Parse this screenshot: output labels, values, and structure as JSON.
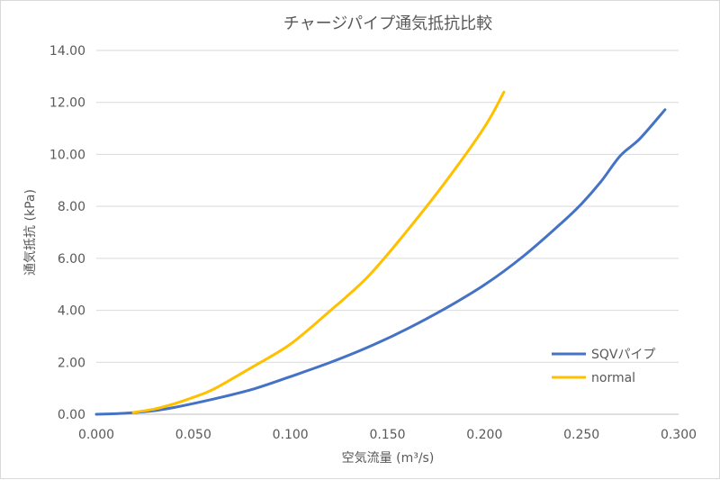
{
  "chart_data": {
    "type": "line",
    "title": "チャージパイプ通気抵抗比較",
    "xlabel": "空気流量 (m³/s)",
    "ylabel": "通気抵抗 (kPa)",
    "xlim": [
      0,
      0.3
    ],
    "ylim": [
      0,
      14
    ],
    "x_ticks": [
      0,
      0.05,
      0.1,
      0.15,
      0.2,
      0.25,
      0.3
    ],
    "x_tick_labels": [
      "0.000",
      "0.050",
      "0.100",
      "0.150",
      "0.200",
      "0.250",
      "0.300"
    ],
    "y_ticks": [
      0,
      2,
      4,
      6,
      8,
      10,
      12,
      14
    ],
    "y_tick_labels": [
      "0.00",
      "2.00",
      "4.00",
      "6.00",
      "8.00",
      "10.00",
      "12.00",
      "14.00"
    ],
    "grid": true,
    "legend_position": "right",
    "series": [
      {
        "name": "SQVパイプ",
        "color": "#4472C4",
        "x": [
          0.0,
          0.01,
          0.02,
          0.03,
          0.04,
          0.06,
          0.08,
          0.1,
          0.12,
          0.14,
          0.16,
          0.18,
          0.2,
          0.22,
          0.24,
          0.25,
          0.26,
          0.27,
          0.28,
          0.293
        ],
        "y": [
          0.0,
          0.02,
          0.07,
          0.14,
          0.26,
          0.58,
          0.95,
          1.45,
          1.98,
          2.58,
          3.28,
          4.08,
          4.98,
          6.08,
          7.38,
          8.1,
          8.95,
          9.95,
          10.6,
          11.72
        ]
      },
      {
        "name": "normal",
        "color": "#FFC000",
        "x": [
          0.019,
          0.03,
          0.04,
          0.05,
          0.06,
          0.08,
          0.1,
          0.12,
          0.14,
          0.16,
          0.18,
          0.2,
          0.21
        ],
        "y": [
          0.07,
          0.2,
          0.4,
          0.65,
          0.95,
          1.8,
          2.7,
          3.95,
          5.3,
          7.05,
          8.95,
          11.05,
          12.4
        ]
      }
    ]
  }
}
